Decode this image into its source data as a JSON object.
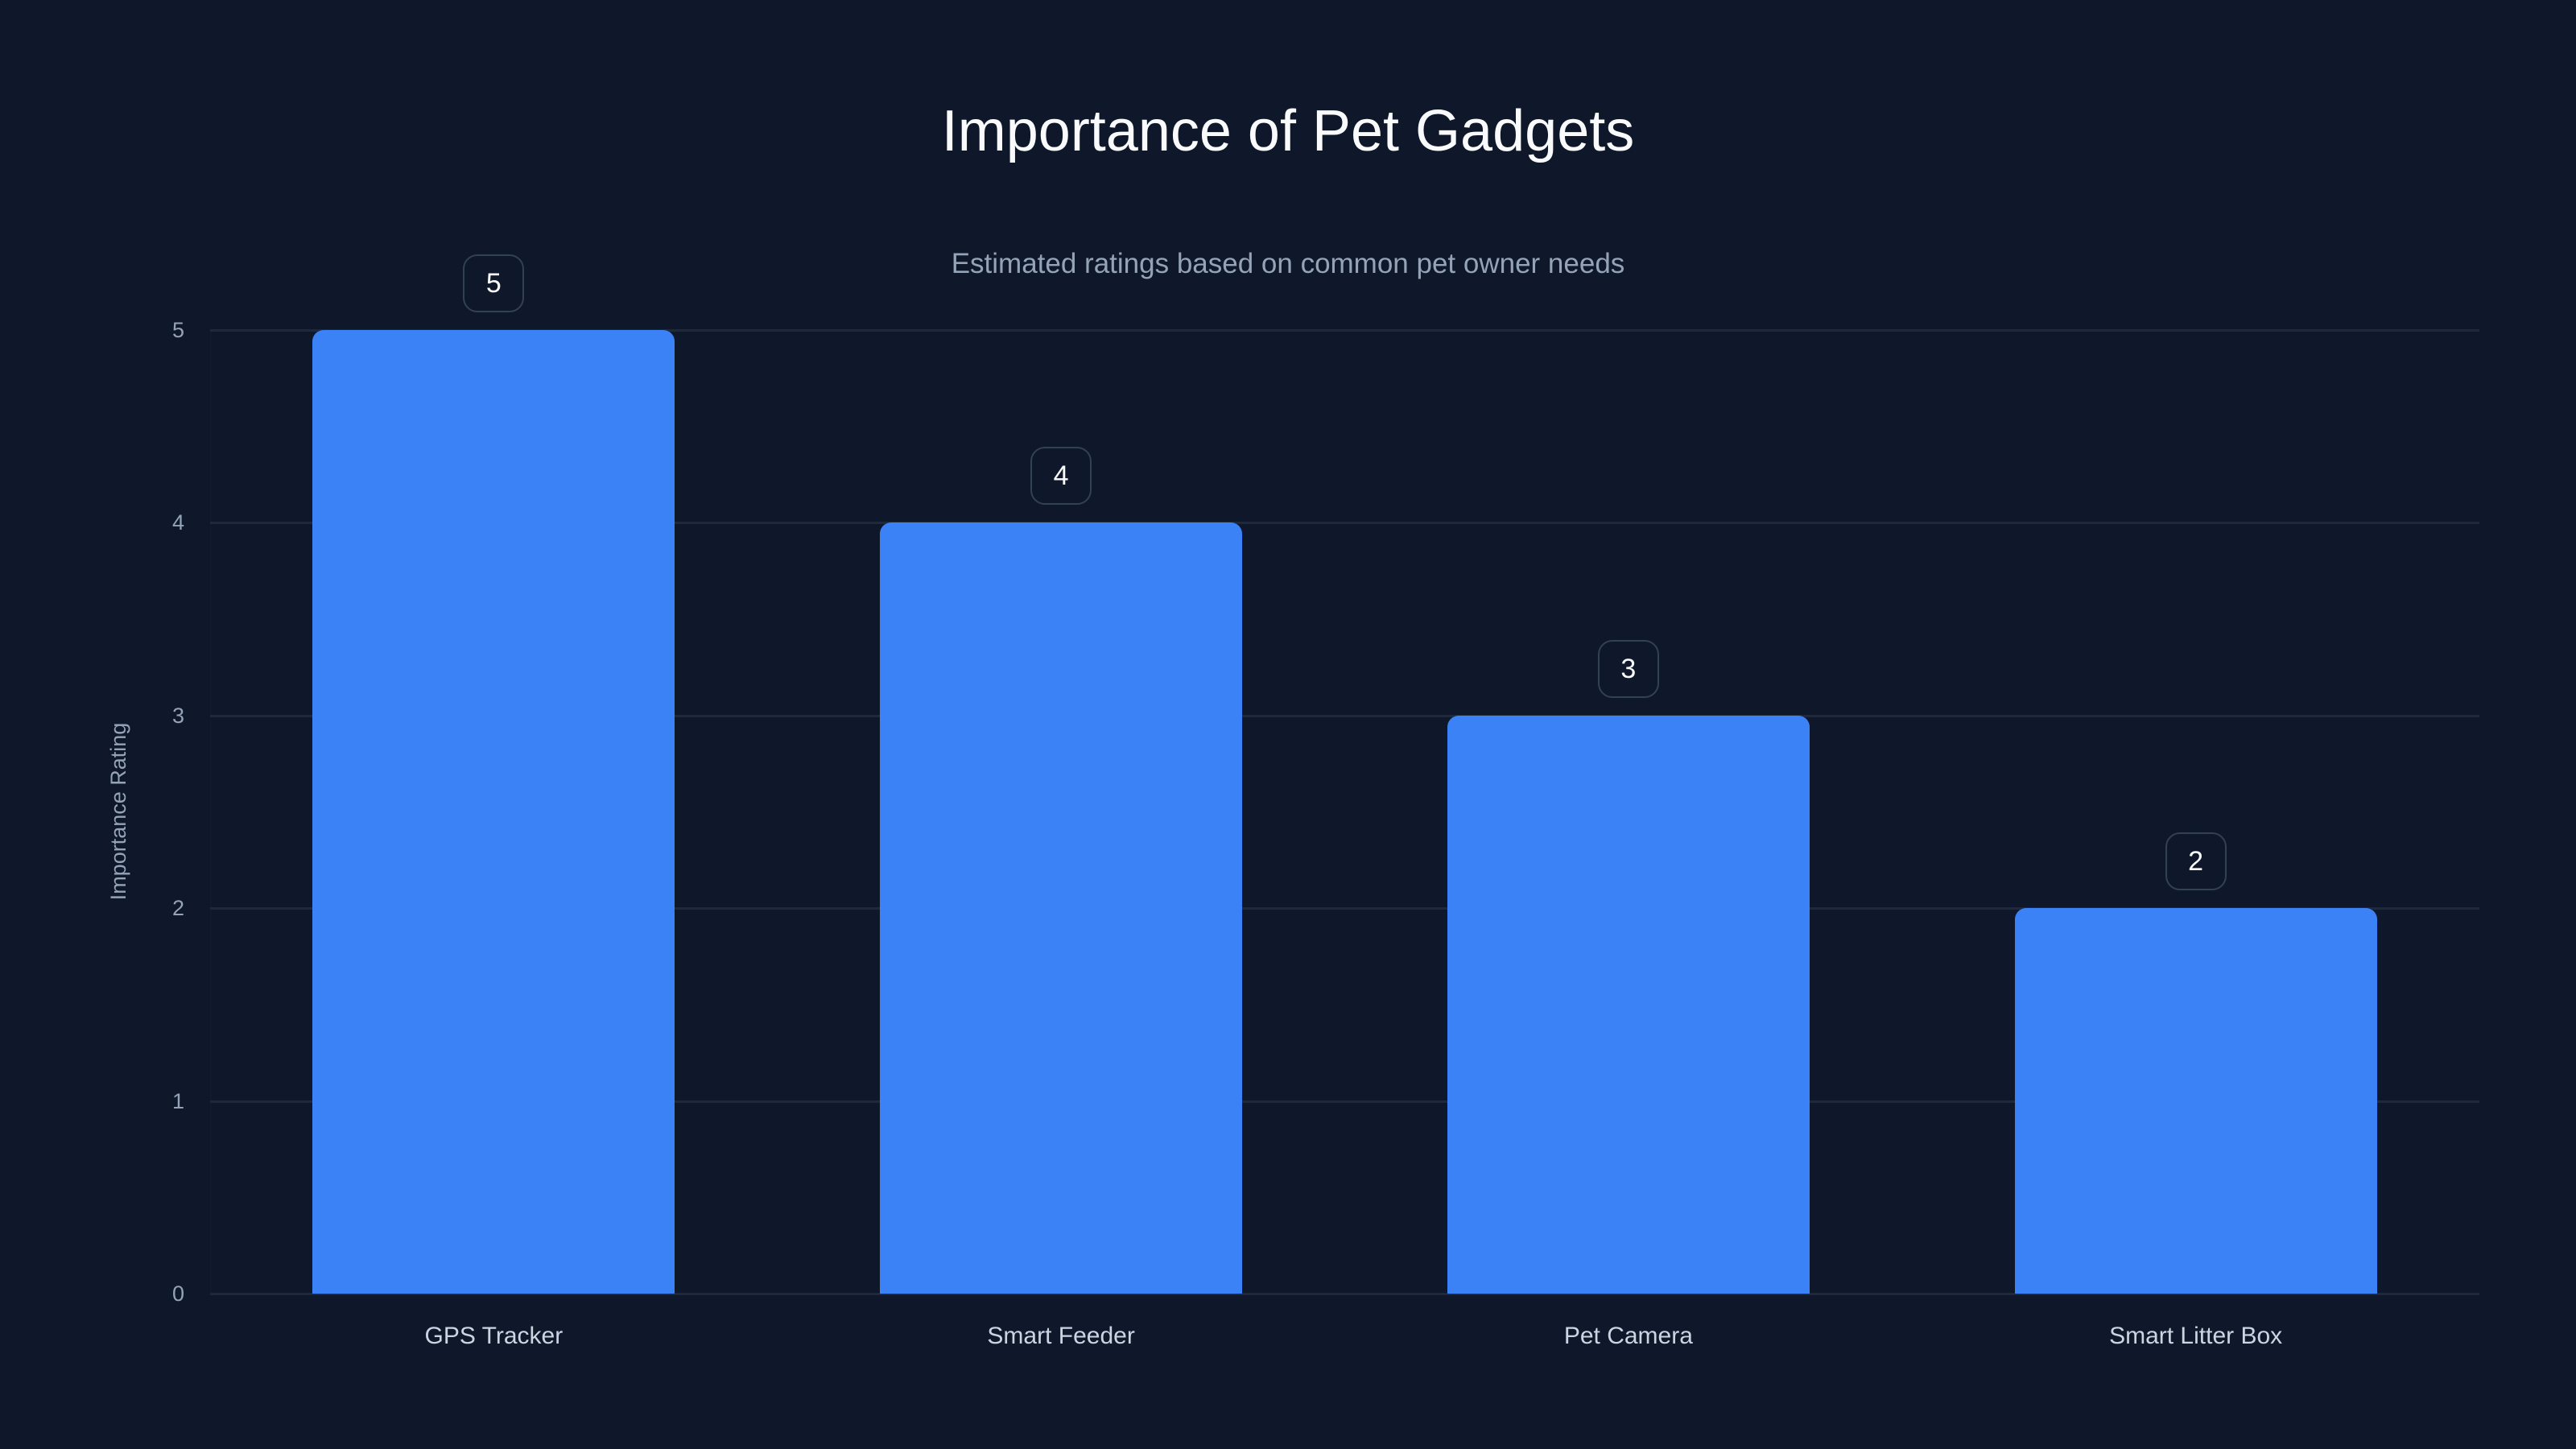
{
  "chart": {
    "title": "Importance of Pet Gadgets",
    "subtitle": "Estimated ratings based on common pet owner needs",
    "y_axis_title": "Importance Rating",
    "y_ticks": [
      "0",
      "1",
      "2",
      "3",
      "4",
      "5"
    ],
    "bars": [
      {
        "category": "GPS Tracker",
        "value": 5,
        "label": "5"
      },
      {
        "category": "Smart Feeder",
        "value": 4,
        "label": "4"
      },
      {
        "category": "Pet Camera",
        "value": 3,
        "label": "3"
      },
      {
        "category": "Smart Litter Box",
        "value": 2,
        "label": "2"
      }
    ],
    "colors": {
      "background": "#0f172a",
      "bar": "#3b82f6",
      "gridline": "#1e293b",
      "badge_border": "#334155",
      "title": "#f8fafc",
      "subtitle": "#94a3b8",
      "axis_text": "#94a3b8",
      "category_text": "#cbd5e1"
    }
  },
  "chart_data": {
    "type": "bar",
    "title": "Importance of Pet Gadgets",
    "subtitle": "Estimated ratings based on common pet owner needs",
    "categories": [
      "GPS Tracker",
      "Smart Feeder",
      "Pet Camera",
      "Smart Litter Box"
    ],
    "values": [
      5,
      4,
      3,
      2
    ],
    "xlabel": "",
    "ylabel": "Importance Rating",
    "ylim": [
      0,
      5
    ],
    "yticks": [
      0,
      1,
      2,
      3,
      4,
      5
    ],
    "grid": true,
    "legend": null,
    "data_labels": true
  }
}
